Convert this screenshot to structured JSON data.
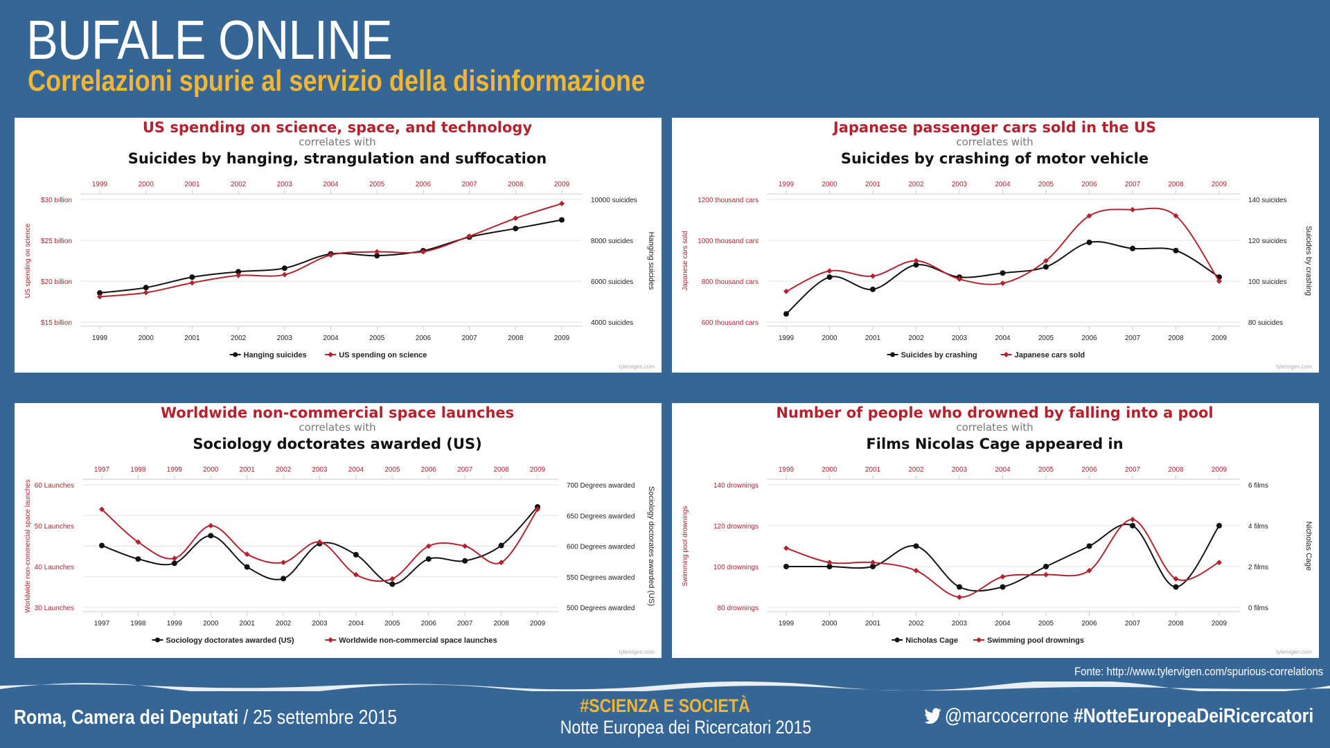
{
  "header": {
    "title": "BUFALE ONLINE",
    "subtitle": "Correlazioni spurie al servizio della disinformazione"
  },
  "footer": {
    "source": "Fonte: http://www.tylervigen.com/spurious-correlations",
    "place_bold": "Roma, Camera dei Deputati",
    "place_rest": " / 25 settembre 2015",
    "hashtag": "#SCIENZA E SOCIETÀ",
    "event": "Notte Europea dei Ricercatori 2015",
    "handle": "@marcocerrone",
    "hashtag2": "#NotteEuropeaDeiRicercatori"
  },
  "colors": {
    "background": "#366695",
    "accent_yellow": "#f2b632",
    "red_series": "#b5222f",
    "black_series": "#111111"
  },
  "icons": {
    "twitter": "twitter-bird-icon"
  },
  "chart_data": [
    {
      "type": "line",
      "title": "US spending on science, space, and technology",
      "correlates": "correlates with",
      "title2": "Suicides by hanging, strangulation and suffocation",
      "x": [
        "1999",
        "2000",
        "2001",
        "2002",
        "2003",
        "2004",
        "2005",
        "2006",
        "2007",
        "2008",
        "2009"
      ],
      "left_ticks": [
        "$15 billion",
        "$20 billion",
        "$25 billion",
        "$30 billion"
      ],
      "left_range": [
        15,
        30
      ],
      "right_ticks": [
        "4000 suicides",
        "6000 suicides",
        "8000 suicides",
        "10000 suicides"
      ],
      "right_range": [
        4000,
        10000
      ],
      "ylabel_left": "US spending on science",
      "ylabel_right": "Hanging suicides",
      "series": [
        {
          "name": "Hanging suicides",
          "axis": "right",
          "color": "#111111",
          "values": [
            5427,
            5688,
            6198,
            6462,
            6635,
            7336,
            7248,
            7491,
            8161,
            8578,
            9000
          ]
        },
        {
          "name": "US spending on science",
          "axis": "left",
          "color": "#b5222f",
          "values": [
            18.1,
            18.6,
            19.8,
            20.7,
            20.8,
            23.2,
            23.6,
            23.6,
            25.5,
            27.7,
            29.5
          ]
        }
      ],
      "legend": "bottom",
      "watermark": "tylervigen.com"
    },
    {
      "type": "line",
      "title": "Japanese passenger cars sold in the US",
      "correlates": "correlates with",
      "title2": "Suicides by crashing of motor vehicle",
      "x": [
        "1999",
        "2000",
        "2001",
        "2002",
        "2003",
        "2004",
        "2005",
        "2006",
        "2007",
        "2008",
        "2009"
      ],
      "left_ticks": [
        "600 thousand cars",
        "800 thousand cars",
        "1000 thousand cars",
        "1200 thousand cars"
      ],
      "left_range": [
        600,
        1200
      ],
      "right_ticks": [
        "80 suicides",
        "100 suicides",
        "120 suicides",
        "140 suicides"
      ],
      "right_range": [
        80,
        140
      ],
      "ylabel_left": "Japanese cars sold",
      "ylabel_right": "Suicides by crashing",
      "series": [
        {
          "name": "Suicides by crashing",
          "axis": "right",
          "color": "#111111",
          "values": [
            84,
            102,
            96,
            108,
            102,
            104,
            107,
            119,
            116,
            115,
            102
          ]
        },
        {
          "name": "Japanese cars sold",
          "axis": "left",
          "color": "#b5222f",
          "values": [
            750,
            850,
            825,
            900,
            810,
            790,
            900,
            1120,
            1150,
            1120,
            800
          ]
        }
      ],
      "legend": "bottom",
      "watermark": "tylervigen.com"
    },
    {
      "type": "line",
      "title": "Worldwide non-commercial space launches",
      "correlates": "correlates with",
      "title2": "Sociology doctorates awarded (US)",
      "x": [
        "1997",
        "1998",
        "1999",
        "2000",
        "2001",
        "2002",
        "2003",
        "2004",
        "2005",
        "2006",
        "2007",
        "2008",
        "2009"
      ],
      "left_ticks": [
        "30 Launches",
        "40 Launches",
        "50 Launches",
        "60 Launches"
      ],
      "left_range": [
        30,
        60
      ],
      "right_ticks": [
        "500 Degrees awarded",
        "550 Degrees awarded",
        "600 Degrees awarded",
        "650 Degrees awarded",
        "700 Degrees awarded"
      ],
      "right_range": [
        500,
        700
      ],
      "ylabel_left": "Worldwide non-commercial space launches",
      "ylabel_right": "Sociology doctorates awarded (US)",
      "series": [
        {
          "name": "Sociology doctorates awarded (US)",
          "axis": "right",
          "color": "#111111",
          "values": [
            601,
            579,
            572,
            617,
            566,
            547,
            604,
            586,
            538,
            579,
            576,
            601,
            664
          ]
        },
        {
          "name": "Worldwide non-commercial space launches",
          "axis": "left",
          "color": "#b5222f",
          "values": [
            54,
            46,
            42,
            50,
            43,
            41,
            46,
            38,
            37,
            45,
            45,
            41,
            54
          ]
        }
      ],
      "legend": "bottom",
      "watermark": "tylervigen.com"
    },
    {
      "type": "line",
      "title": "Number of people who drowned by falling into a pool",
      "correlates": "correlates with",
      "title2": "Films Nicolas Cage appeared in",
      "x": [
        "1999",
        "2000",
        "2001",
        "2002",
        "2003",
        "2004",
        "2005",
        "2006",
        "2007",
        "2008",
        "2009"
      ],
      "left_ticks": [
        "80 drownings",
        "100 drownings",
        "120 drownings",
        "140 drownings"
      ],
      "left_range": [
        80,
        140
      ],
      "right_ticks": [
        "0 films",
        "2 films",
        "4 films",
        "6 films"
      ],
      "right_range": [
        0,
        6
      ],
      "ylabel_left": "Swimming pool drownings",
      "ylabel_right": "Nicholas Cage",
      "series": [
        {
          "name": "Nicholas Cage",
          "axis": "right",
          "color": "#111111",
          "values": [
            2,
            2,
            2,
            3,
            1,
            1,
            2,
            3,
            4,
            1,
            4
          ]
        },
        {
          "name": "Swimming pool drownings",
          "axis": "left",
          "color": "#b5222f",
          "values": [
            109,
            102,
            102,
            98,
            85,
            95,
            96,
            98,
            123,
            94,
            102
          ]
        }
      ],
      "legend": "bottom",
      "watermark": "tylervigen.com"
    }
  ]
}
